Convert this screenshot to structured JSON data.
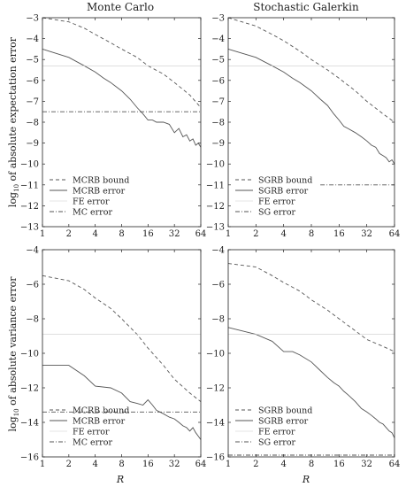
{
  "figure": {
    "col_titles": [
      "Monte Carlo",
      "Stochastic Galerkin"
    ],
    "ylabels": [
      "log10 of absolute expectation error",
      "log10 of absolute variance error"
    ],
    "ylabel_parts": [
      {
        "pre": "log",
        "sub": "10",
        "post": " of absolute expectation error"
      },
      {
        "pre": "log",
        "sub": "10",
        "post": " of absolute variance error"
      }
    ],
    "xlabel": "R",
    "colors": {
      "line": "#555555",
      "fe": "#cccccc",
      "frame": "#222222"
    }
  },
  "chart_data": [
    {
      "type": "line",
      "title": "Monte Carlo",
      "ylabel": "log10 of absolute expectation error",
      "xlabel": "",
      "x_scale": "log2",
      "xlim": [
        1,
        64
      ],
      "ylim": [
        -13,
        -3
      ],
      "xticks": [
        "1",
        "2",
        "4",
        "8",
        "16",
        "32",
        "64"
      ],
      "yticks": [
        -3,
        -4,
        -5,
        -6,
        -7,
        -8,
        -9,
        -10,
        -11,
        -12,
        -13
      ],
      "legend_position": "bottom-left",
      "series": [
        {
          "name": "MCRB bound",
          "style": "dashed",
          "x": [
            1,
            2,
            3,
            4,
            6,
            8,
            12,
            16,
            24,
            32,
            48,
            64
          ],
          "y": [
            -3.0,
            -3.2,
            -3.5,
            -3.8,
            -4.2,
            -4.5,
            -4.9,
            -5.3,
            -5.7,
            -6.1,
            -6.7,
            -7.3
          ]
        },
        {
          "name": "MCRB error",
          "style": "solid",
          "x": [
            1,
            2,
            3,
            4,
            5,
            6,
            8,
            10,
            12,
            14,
            16,
            18,
            20,
            24,
            28,
            32,
            36,
            40,
            44,
            48,
            52,
            56,
            60,
            64
          ],
          "y": [
            -4.5,
            -4.9,
            -5.3,
            -5.6,
            -5.9,
            -6.1,
            -6.5,
            -6.9,
            -7.3,
            -7.6,
            -7.9,
            -7.9,
            -8.0,
            -8.0,
            -8.1,
            -8.5,
            -8.3,
            -8.7,
            -8.6,
            -8.9,
            -8.8,
            -9.1,
            -9.0,
            -9.2
          ]
        },
        {
          "name": "FE error",
          "style": "thin",
          "x": [
            1,
            64
          ],
          "y": [
            -5.3,
            -5.3
          ]
        },
        {
          "name": "MC error",
          "style": "dashdot",
          "x": [
            1,
            64
          ],
          "y": [
            -7.5,
            -7.5
          ]
        }
      ]
    },
    {
      "type": "line",
      "title": "Stochastic Galerkin",
      "ylabel": "",
      "xlabel": "",
      "x_scale": "log2",
      "xlim": [
        1,
        64
      ],
      "ylim": [
        -13,
        -3
      ],
      "xticks": [
        "1",
        "2",
        "4",
        "8",
        "16",
        "32",
        "64"
      ],
      "yticks": [
        -3,
        -4,
        -5,
        -6,
        -7,
        -8,
        -9,
        -10,
        -11,
        -12,
        -13
      ],
      "legend_position": "bottom-left",
      "series": [
        {
          "name": "SGRB bound",
          "style": "dashed",
          "x": [
            1,
            2,
            3,
            4,
            6,
            8,
            12,
            16,
            24,
            32,
            48,
            64
          ],
          "y": [
            -3.0,
            -3.4,
            -3.8,
            -4.1,
            -4.6,
            -5.0,
            -5.5,
            -5.9,
            -6.5,
            -7.0,
            -7.6,
            -8.0
          ]
        },
        {
          "name": "SGRB error",
          "style": "solid",
          "x": [
            1,
            2,
            3,
            4,
            5,
            6,
            8,
            10,
            12,
            14,
            16,
            18,
            20,
            24,
            28,
            32,
            36,
            40,
            44,
            48,
            52,
            56,
            60,
            64
          ],
          "y": [
            -4.5,
            -4.9,
            -5.3,
            -5.6,
            -5.9,
            -6.1,
            -6.5,
            -6.9,
            -7.2,
            -7.6,
            -7.9,
            -8.2,
            -8.3,
            -8.5,
            -8.7,
            -8.9,
            -9.1,
            -9.2,
            -9.5,
            -9.6,
            -9.7,
            -9.9,
            -9.8,
            -10.0
          ]
        },
        {
          "name": "FE error",
          "style": "thin",
          "x": [
            1,
            64
          ],
          "y": [
            -5.3,
            -5.3
          ]
        },
        {
          "name": "SG error",
          "style": "dashdot",
          "x": [
            10,
            64
          ],
          "y": [
            -11.0,
            -11.0
          ]
        }
      ]
    },
    {
      "type": "line",
      "title": "",
      "ylabel": "log10 of absolute variance error",
      "xlabel": "R",
      "x_scale": "log2",
      "xlim": [
        1,
        64
      ],
      "ylim": [
        -16,
        -4
      ],
      "xticks": [
        "1",
        "2",
        "4",
        "8",
        "16",
        "32",
        "64"
      ],
      "xticklabels": [
        "1",
        "2",
        "4",
        "8",
        "16",
        "32",
        "64"
      ],
      "yticks": [
        -4,
        -6,
        -8,
        -10,
        -12,
        -14,
        -16
      ],
      "legend_position": "bottom-left",
      "series": [
        {
          "name": "MCRB bound",
          "style": "dashed",
          "x": [
            1,
            2,
            3,
            4,
            6,
            8,
            12,
            16,
            24,
            32,
            48,
            64
          ],
          "y": [
            -5.5,
            -5.8,
            -6.3,
            -6.8,
            -7.4,
            -8.0,
            -8.9,
            -9.7,
            -10.7,
            -11.5,
            -12.3,
            -12.8
          ]
        },
        {
          "name": "MCRB error",
          "style": "solid",
          "x": [
            1,
            2,
            3,
            4,
            6,
            8,
            10,
            12,
            14,
            16,
            18,
            20,
            24,
            28,
            32,
            36,
            40,
            44,
            48,
            52,
            56,
            60,
            64
          ],
          "y": [
            -10.7,
            -10.7,
            -11.3,
            -11.9,
            -12.0,
            -12.3,
            -12.8,
            -12.9,
            -13.0,
            -12.7,
            -13.0,
            -13.3,
            -13.5,
            -13.7,
            -13.8,
            -14.0,
            -14.2,
            -14.3,
            -14.5,
            -14.3,
            -14.6,
            -14.8,
            -15.0
          ]
        },
        {
          "name": "FE error",
          "style": "thin",
          "x": [
            1,
            64
          ],
          "y": [
            -8.9,
            -8.9
          ]
        },
        {
          "name": "MC error",
          "style": "dashdot",
          "x": [
            1,
            64
          ],
          "y": [
            -13.4,
            -13.4
          ]
        }
      ]
    },
    {
      "type": "line",
      "title": "",
      "ylabel": "",
      "xlabel": "R",
      "x_scale": "log2",
      "xlim": [
        1,
        64
      ],
      "ylim": [
        -16,
        -4
      ],
      "xticks": [
        "1",
        "2",
        "4",
        "8",
        "16",
        "32",
        "64"
      ],
      "xticklabels": [
        "1",
        "2",
        "4",
        "8",
        "16",
        "32",
        "64"
      ],
      "yticks": [
        -4,
        -6,
        -8,
        -10,
        -12,
        -14,
        -16
      ],
      "legend_position": "bottom-left",
      "series": [
        {
          "name": "SGRB bound",
          "style": "dashed",
          "x": [
            1,
            2,
            3,
            4,
            6,
            8,
            12,
            16,
            24,
            32,
            48,
            64
          ],
          "y": [
            -4.8,
            -5.0,
            -5.5,
            -5.9,
            -6.4,
            -6.9,
            -7.5,
            -8.0,
            -8.7,
            -9.2,
            -9.6,
            -9.9
          ]
        },
        {
          "name": "SGRB error",
          "style": "solid",
          "x": [
            1,
            2,
            3,
            4,
            5,
            6,
            8,
            10,
            12,
            14,
            16,
            18,
            20,
            24,
            28,
            32,
            36,
            40,
            44,
            48,
            52,
            56,
            60,
            64
          ],
          "y": [
            -8.5,
            -8.9,
            -9.3,
            -9.9,
            -9.9,
            -10.1,
            -10.5,
            -11.0,
            -11.4,
            -11.7,
            -11.9,
            -12.2,
            -12.4,
            -12.8,
            -13.2,
            -13.4,
            -13.6,
            -13.8,
            -14.0,
            -14.1,
            -14.3,
            -14.5,
            -14.6,
            -14.9
          ]
        },
        {
          "name": "FE error",
          "style": "thin",
          "x": [
            1,
            64
          ],
          "y": [
            -8.9,
            -8.9
          ]
        },
        {
          "name": "SG error",
          "style": "dashdot",
          "x": [
            1,
            64
          ],
          "y": [
            -15.9,
            -15.9
          ]
        }
      ]
    }
  ]
}
